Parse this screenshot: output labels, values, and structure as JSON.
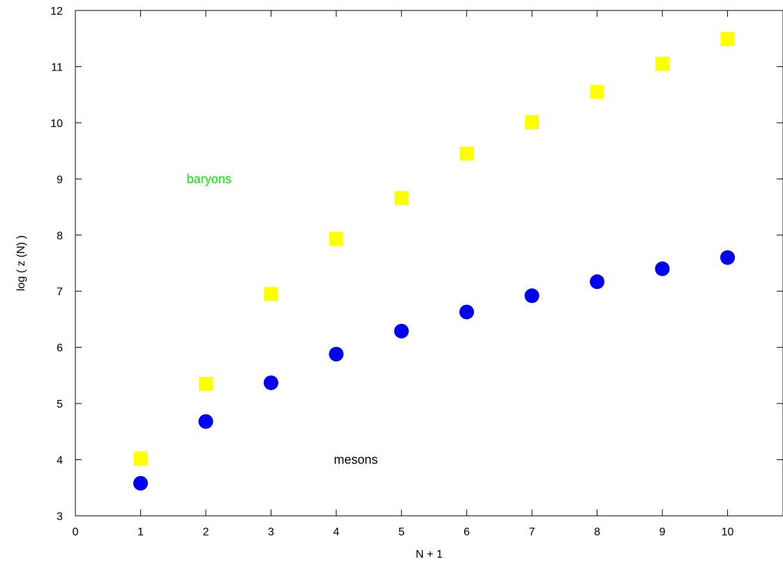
{
  "chart_data": {
    "type": "scatter",
    "xlabel": "N + 1",
    "ylabel": "log ( z (N) )",
    "xlim": [
      0,
      10.85
    ],
    "ylim": [
      3,
      12
    ],
    "x_ticks": [
      "0",
      "1",
      "2",
      "3",
      "4",
      "5",
      "6",
      "7",
      "8",
      "9",
      "10"
    ],
    "y_ticks": [
      "3",
      "4",
      "5",
      "6",
      "7",
      "8",
      "9",
      "10",
      "11",
      "12"
    ],
    "grid": false,
    "legend": "none",
    "series": [
      {
        "marker": "square",
        "color": "#ffff00",
        "x": [
          1,
          2,
          3,
          4,
          5,
          6,
          7,
          8,
          9,
          10
        ],
        "y": [
          4.02,
          5.35,
          6.95,
          7.93,
          8.66,
          9.45,
          10.01,
          10.55,
          11.05,
          11.49
        ]
      },
      {
        "marker": "circle",
        "color": "#0000ee",
        "x": [
          1,
          2,
          3,
          4,
          5,
          6,
          7,
          8,
          9,
          10
        ],
        "y": [
          3.58,
          4.68,
          5.37,
          5.88,
          6.29,
          6.63,
          6.92,
          7.17,
          7.4,
          7.6
        ]
      }
    ],
    "annotations": [
      {
        "text": "baryons",
        "x": 2.05,
        "y": 9.0,
        "color": "#00ee00"
      },
      {
        "text": "mesons",
        "x": 4.3,
        "y": 4.0,
        "color": "#000000"
      }
    ]
  }
}
